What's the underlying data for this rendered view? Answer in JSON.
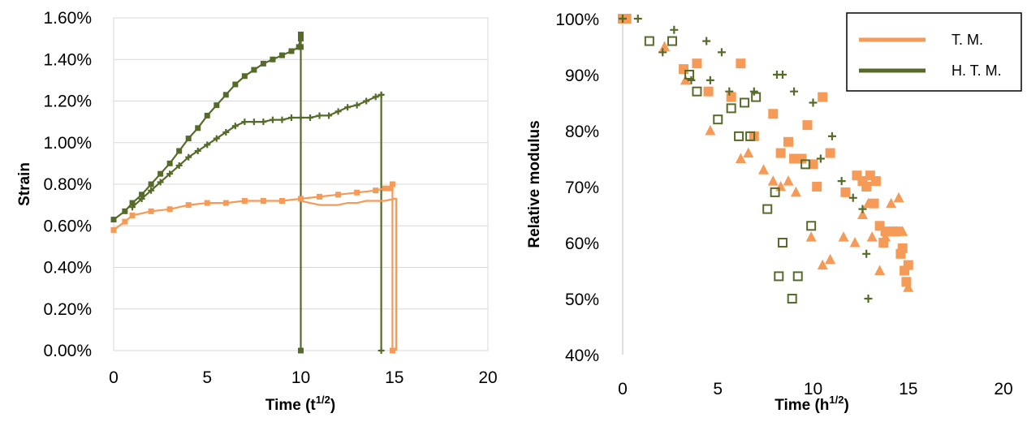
{
  "chart_data": [
    {
      "type": "line",
      "xlabel": "Time (t",
      "xlabel_sup": "1/2",
      "xlabel_end": ")",
      "ylabel": "Strain",
      "xlim": [
        0,
        20
      ],
      "ylim": [
        0,
        0.016
      ],
      "x_ticks": [
        "0",
        "5",
        "10",
        "15",
        "20"
      ],
      "y_ticks": [
        "0.00%",
        "0.20%",
        "0.40%",
        "0.60%",
        "0.80%",
        "1.00%",
        "1.20%",
        "1.40%",
        "1.60%"
      ],
      "grid": true,
      "colors": {
        "tm": "#f59a57",
        "htm": "#566b2a"
      },
      "series": [
        {
          "group": "htm",
          "marker": "square",
          "x": [
            0,
            0.6,
            1,
            1.5,
            2,
            2.5,
            3,
            3.5,
            4,
            4.5,
            5,
            5.5,
            6,
            6.5,
            7,
            7.5,
            8,
            8.5,
            9,
            9.5,
            9.9,
            10,
            10,
            10,
            10
          ],
          "y": [
            0.0063,
            0.0067,
            0.0071,
            0.0075,
            0.008,
            0.0085,
            0.009,
            0.0096,
            0.0102,
            0.0107,
            0.0113,
            0.0118,
            0.0123,
            0.0128,
            0.0132,
            0.0135,
            0.0138,
            0.014,
            0.0142,
            0.0144,
            0.0146,
            0.0152,
            0.015,
            0.0146,
            0
          ]
        },
        {
          "group": "htm",
          "marker": "plus",
          "x": [
            1,
            1.5,
            2,
            2.5,
            3,
            3.5,
            4,
            4.5,
            5,
            5.5,
            6,
            6.5,
            7,
            7.5,
            8,
            8.5,
            9,
            9.5,
            10,
            10.5,
            11,
            11.5,
            12,
            12.5,
            13,
            13.5,
            14,
            14.3,
            14.3,
            14.3
          ],
          "y": [
            0.0069,
            0.0073,
            0.0077,
            0.0081,
            0.0085,
            0.0089,
            0.0093,
            0.0096,
            0.0099,
            0.0102,
            0.0105,
            0.0108,
            0.011,
            0.011,
            0.011,
            0.0111,
            0.0111,
            0.0112,
            0.0112,
            0.0112,
            0.0113,
            0.0113,
            0.0115,
            0.0117,
            0.0118,
            0.012,
            0.0122,
            0.0123,
            0.0123,
            0
          ]
        },
        {
          "group": "tm",
          "marker": "square",
          "x": [
            0,
            0.6,
            1,
            2,
            3,
            4,
            5,
            6,
            7,
            8,
            9,
            10,
            11,
            12,
            13,
            14,
            14.5,
            14.8,
            14.9,
            14.9
          ],
          "y": [
            0.0058,
            0.0062,
            0.0065,
            0.0067,
            0.0068,
            0.007,
            0.0071,
            0.0071,
            0.0072,
            0.0072,
            0.0072,
            0.0073,
            0.0074,
            0.0075,
            0.0076,
            0.0077,
            0.0078,
            0.0078,
            0.008,
            0
          ]
        },
        {
          "group": "tm",
          "marker": "line",
          "x": [
            10,
            10.5,
            11,
            11.5,
            12,
            12.5,
            13,
            13.5,
            14,
            14.5,
            15,
            15.1,
            15.1
          ],
          "y": [
            0.0072,
            0.0071,
            0.007,
            0.007,
            0.007,
            0.0071,
            0.0071,
            0.0072,
            0.0072,
            0.0072,
            0.0073,
            0.0073,
            0
          ]
        }
      ]
    },
    {
      "type": "scatter",
      "xlabel": "Time (h",
      "xlabel_sup": "1/2",
      "xlabel_end": ")",
      "ylabel": "Relative modulus",
      "xlim": [
        0,
        20
      ],
      "ylim": [
        0.4,
        1.0
      ],
      "x_ticks": [
        "0",
        "5",
        "10",
        "15",
        "20"
      ],
      "y_ticks": [
        "40%",
        "50%",
        "60%",
        "70%",
        "80%",
        "90%",
        "100%"
      ],
      "grid": false,
      "legend_position": "top-right",
      "legend": [
        {
          "group": "tm",
          "label": "T. M."
        },
        {
          "group": "htm",
          "label": "H. T. M."
        }
      ],
      "colors": {
        "tm": "#f59a57",
        "htm": "#566b2a"
      },
      "series": [
        {
          "group": "tm",
          "marker": "filled-square",
          "points": [
            [
              0,
              1.0
            ],
            [
              0.2,
              1.0
            ],
            [
              3.2,
              0.91
            ],
            [
              3.9,
              0.92
            ],
            [
              4.5,
              0.87
            ],
            [
              5.7,
              0.86
            ],
            [
              6.2,
              0.92
            ],
            [
              6.9,
              0.79
            ],
            [
              7.9,
              0.83
            ],
            [
              8.3,
              0.76
            ],
            [
              8.7,
              0.78
            ],
            [
              9,
              0.75
            ],
            [
              9.4,
              0.75
            ],
            [
              9.7,
              0.81
            ],
            [
              10,
              0.74
            ],
            [
              10.2,
              0.7
            ],
            [
              10.5,
              0.86
            ],
            [
              10.9,
              0.76
            ],
            [
              11.7,
              0.69
            ],
            [
              12.3,
              0.72
            ],
            [
              12.6,
              0.71
            ],
            [
              12.8,
              0.7
            ],
            [
              13,
              0.72
            ],
            [
              13.2,
              0.67
            ],
            [
              13.3,
              0.71
            ],
            [
              13.5,
              0.63
            ],
            [
              13.7,
              0.6
            ],
            [
              13.8,
              0.62
            ],
            [
              14.2,
              0.62
            ],
            [
              14.4,
              0.62
            ],
            [
              14.6,
              0.58
            ],
            [
              14.7,
              0.59
            ],
            [
              14.8,
              0.55
            ],
            [
              14.9,
              0.53
            ],
            [
              15,
              0.56
            ]
          ]
        },
        {
          "group": "tm",
          "marker": "triangle",
          "points": [
            [
              2.2,
              0.95
            ],
            [
              3.3,
              0.89
            ],
            [
              4.6,
              0.8
            ],
            [
              6.2,
              0.75
            ],
            [
              6.6,
              0.76
            ],
            [
              7.4,
              0.73
            ],
            [
              7.9,
              0.71
            ],
            [
              8.3,
              0.7
            ],
            [
              8.7,
              0.71
            ],
            [
              9.1,
              0.69
            ],
            [
              9.9,
              0.61
            ],
            [
              10.5,
              0.56
            ],
            [
              10.9,
              0.57
            ],
            [
              11.6,
              0.61
            ],
            [
              12.2,
              0.6
            ],
            [
              12.6,
              0.65
            ],
            [
              12.9,
              0.67
            ],
            [
              13.1,
              0.61
            ],
            [
              13.5,
              0.55
            ],
            [
              13.8,
              0.61
            ],
            [
              14.1,
              0.67
            ],
            [
              14.5,
              0.68
            ],
            [
              14.7,
              0.62
            ],
            [
              15,
              0.52
            ]
          ]
        },
        {
          "group": "htm",
          "marker": "open-square",
          "points": [
            [
              1.4,
              0.96
            ],
            [
              2.6,
              0.96
            ],
            [
              3.5,
              0.9
            ],
            [
              3.9,
              0.87
            ],
            [
              5,
              0.82
            ],
            [
              5.7,
              0.84
            ],
            [
              6.1,
              0.79
            ],
            [
              6.4,
              0.85
            ],
            [
              6.7,
              0.79
            ],
            [
              7,
              0.86
            ],
            [
              7.6,
              0.66
            ],
            [
              8,
              0.69
            ],
            [
              8.2,
              0.54
            ],
            [
              8.4,
              0.6
            ],
            [
              8.9,
              0.5
            ],
            [
              9.2,
              0.54
            ],
            [
              9.6,
              0.74
            ],
            [
              9.9,
              0.63
            ]
          ]
        },
        {
          "group": "htm",
          "marker": "plus",
          "points": [
            [
              0,
              1.0
            ],
            [
              0.8,
              1.0
            ],
            [
              2.1,
              0.94
            ],
            [
              2.7,
              0.98
            ],
            [
              3.6,
              0.89
            ],
            [
              4.4,
              0.96
            ],
            [
              4.6,
              0.89
            ],
            [
              5.2,
              0.94
            ],
            [
              5.6,
              0.87
            ],
            [
              6.9,
              0.87
            ],
            [
              8.1,
              0.9
            ],
            [
              8.4,
              0.9
            ],
            [
              9,
              0.87
            ],
            [
              10,
              0.85
            ],
            [
              10.4,
              0.75
            ],
            [
              11,
              0.79
            ],
            [
              11.5,
              0.71
            ],
            [
              12.1,
              0.68
            ],
            [
              12.6,
              0.66
            ],
            [
              12.8,
              0.58
            ],
            [
              12.9,
              0.5
            ]
          ]
        }
      ]
    }
  ]
}
